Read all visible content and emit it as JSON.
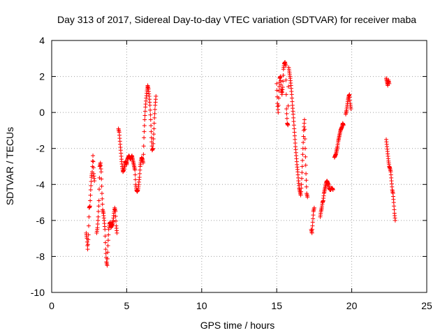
{
  "chart_data": {
    "type": "scatter",
    "title": "Day 313 of 2017, Sidereal Day-to-day VTEC variation (SDTVAR) for receiver maba",
    "xlabel": "GPS time / hours",
    "ylabel": "SDTVAR / TECUs",
    "xlim": [
      0,
      25
    ],
    "ylim": [
      -10,
      4
    ],
    "xticks": [
      0,
      5,
      10,
      15,
      20,
      25
    ],
    "yticks": [
      -10,
      -8,
      -6,
      -4,
      -2,
      0,
      2,
      4
    ],
    "grid": true,
    "marker": "+",
    "color": "#ff0000",
    "segments": [
      [
        [
          2.3,
          -6.7
        ],
        [
          2.35,
          -7.0
        ],
        [
          2.4,
          -7.6
        ],
        [
          2.45,
          -6.8
        ],
        [
          2.5,
          -5.3
        ],
        [
          2.55,
          -5.2
        ],
        [
          2.6,
          -4.3
        ],
        [
          2.65,
          -3.6
        ],
        [
          2.7,
          -3.3
        ],
        [
          2.75,
          -2.4
        ],
        [
          2.8,
          -3.4
        ],
        [
          2.85,
          -3.8
        ]
      ],
      [
        [
          3.0,
          -6.7
        ],
        [
          3.05,
          -6.4
        ],
        [
          3.1,
          -5.8
        ],
        [
          3.15,
          -4.9
        ],
        [
          3.2,
          -3.0
        ],
        [
          3.25,
          -2.8
        ],
        [
          3.3,
          -3.3
        ],
        [
          3.35,
          -4.5
        ],
        [
          3.4,
          -5.4
        ],
        [
          3.45,
          -5.6
        ],
        [
          3.5,
          -6.0
        ],
        [
          3.55,
          -6.5
        ],
        [
          3.6,
          -7.6
        ],
        [
          3.65,
          -8.3
        ],
        [
          3.7,
          -8.5
        ],
        [
          3.75,
          -7.4
        ],
        [
          3.8,
          -6.5
        ],
        [
          3.85,
          -6.2
        ],
        [
          3.9,
          -6.1
        ],
        [
          3.95,
          -6.4
        ],
        [
          4.0,
          -6.3
        ],
        [
          4.05,
          -6.2
        ],
        [
          4.1,
          -6.0
        ],
        [
          4.15,
          -5.6
        ],
        [
          4.2,
          -5.3
        ],
        [
          4.25,
          -5.5
        ],
        [
          4.3,
          -6.3
        ],
        [
          4.35,
          -6.7
        ]
      ],
      [
        [
          4.45,
          -0.9
        ],
        [
          4.5,
          -1.1
        ],
        [
          4.55,
          -1.6
        ],
        [
          4.6,
          -2.1
        ],
        [
          4.65,
          -2.6
        ],
        [
          4.7,
          -3.0
        ],
        [
          4.75,
          -3.3
        ],
        [
          4.8,
          -3.2
        ],
        [
          4.85,
          -3.0
        ],
        [
          4.9,
          -2.8
        ],
        [
          4.95,
          -2.7
        ],
        [
          5.0,
          -2.9
        ],
        [
          5.05,
          -2.6
        ],
        [
          5.1,
          -2.5
        ],
        [
          5.15,
          -2.4
        ],
        [
          5.2,
          -2.5
        ],
        [
          5.25,
          -2.6
        ],
        [
          5.3,
          -2.5
        ],
        [
          5.35,
          -2.4
        ],
        [
          5.4,
          -2.6
        ],
        [
          5.45,
          -2.8
        ],
        [
          5.5,
          -3.0
        ],
        [
          5.55,
          -3.2
        ],
        [
          5.6,
          -4.0
        ],
        [
          5.65,
          -4.3
        ],
        [
          5.7,
          -4.4
        ],
        [
          5.75,
          -4.3
        ],
        [
          5.8,
          -4.0
        ],
        [
          5.85,
          -3.6
        ],
        [
          5.9,
          -3.0
        ],
        [
          5.95,
          -2.7
        ],
        [
          6.0,
          -2.5
        ],
        [
          6.05,
          -2.6
        ],
        [
          6.1,
          -2.8
        ],
        [
          6.15,
          -1.4
        ],
        [
          6.2,
          -0.4
        ],
        [
          6.25,
          0.3
        ],
        [
          6.3,
          0.8
        ],
        [
          6.35,
          1.2
        ],
        [
          6.4,
          1.5
        ],
        [
          6.45,
          1.3
        ],
        [
          6.5,
          0.9
        ],
        [
          6.55,
          0.4
        ],
        [
          6.6,
          -0.4
        ],
        [
          6.65,
          -1.4
        ],
        [
          6.7,
          -2.1
        ],
        [
          6.75,
          -2.0
        ],
        [
          6.8,
          -1.2
        ],
        [
          6.85,
          -0.3
        ],
        [
          6.9,
          0.4
        ],
        [
          6.95,
          0.9
        ]
      ],
      [
        [
          15.0,
          1.6
        ],
        [
          15.05,
          0.5
        ],
        [
          15.1,
          0.0
        ],
        [
          15.15,
          1.2
        ],
        [
          15.2,
          1.9
        ],
        [
          15.25,
          2.0
        ],
        [
          15.3,
          1.3
        ],
        [
          15.35,
          1.0
        ],
        [
          15.4,
          1.4
        ],
        [
          15.45,
          2.4
        ],
        [
          15.5,
          2.7
        ],
        [
          15.55,
          2.8
        ],
        [
          15.6,
          2.6
        ],
        [
          15.65,
          0.2
        ],
        [
          15.7,
          -0.6
        ],
        [
          15.75,
          -0.7
        ],
        [
          15.8,
          2.5
        ],
        [
          15.85,
          2.2
        ],
        [
          15.9,
          1.9
        ],
        [
          15.95,
          1.5
        ],
        [
          16.0,
          1.0
        ],
        [
          16.05,
          0.4
        ],
        [
          16.1,
          -0.1
        ],
        [
          16.15,
          -0.7
        ],
        [
          16.2,
          -1.3
        ],
        [
          16.25,
          -1.9
        ],
        [
          16.3,
          -2.4
        ],
        [
          16.35,
          -2.9
        ],
        [
          16.4,
          -3.3
        ],
        [
          16.45,
          -3.8
        ],
        [
          16.5,
          -4.2
        ],
        [
          16.55,
          -4.4
        ],
        [
          16.6,
          -4.6
        ],
        [
          16.65,
          -4.0
        ],
        [
          16.7,
          -3.0
        ],
        [
          16.75,
          -2.0
        ],
        [
          16.8,
          -1.0
        ],
        [
          16.85,
          -0.4
        ],
        [
          16.9,
          -2.0
        ],
        [
          16.95,
          -3.4
        ],
        [
          17.0,
          -4.5
        ],
        [
          17.05,
          -4.7
        ]
      ],
      [
        [
          17.3,
          -6.5
        ],
        [
          17.35,
          -6.7
        ],
        [
          17.4,
          -6.1
        ],
        [
          17.45,
          -5.5
        ],
        [
          17.5,
          -5.3
        ]
      ],
      [
        [
          17.9,
          -5.8
        ],
        [
          17.95,
          -5.5
        ],
        [
          18.0,
          -5.3
        ],
        [
          18.05,
          -5.0
        ],
        [
          18.1,
          -4.9
        ],
        [
          18.15,
          -4.5
        ],
        [
          18.2,
          -4.3
        ],
        [
          18.25,
          -4.1
        ],
        [
          18.3,
          -3.9
        ],
        [
          18.35,
          -3.8
        ],
        [
          18.4,
          -3.9
        ],
        [
          18.45,
          -4.0
        ],
        [
          18.5,
          -4.2
        ],
        [
          18.55,
          -4.3
        ],
        [
          18.6,
          -4.3
        ],
        [
          18.65,
          -4.2
        ],
        [
          18.7,
          -4.2
        ],
        [
          18.75,
          -4.3
        ]
      ],
      [
        [
          18.85,
          -2.5
        ],
        [
          18.9,
          -2.4
        ],
        [
          18.95,
          -2.3
        ],
        [
          19.0,
          -2.1
        ],
        [
          19.05,
          -1.9
        ],
        [
          19.1,
          -1.6
        ],
        [
          19.15,
          -1.4
        ],
        [
          19.2,
          -1.2
        ],
        [
          19.25,
          -1.0
        ],
        [
          19.3,
          -0.9
        ],
        [
          19.35,
          -0.8
        ],
        [
          19.4,
          -0.6
        ],
        [
          19.45,
          -0.7
        ]
      ],
      [
        [
          19.6,
          -0.1
        ],
        [
          19.65,
          0.1
        ],
        [
          19.7,
          0.4
        ],
        [
          19.75,
          0.7
        ],
        [
          19.8,
          0.9
        ],
        [
          19.85,
          1.0
        ],
        [
          19.9,
          0.5
        ],
        [
          19.95,
          0.2
        ]
      ],
      [
        [
          22.3,
          -1.5
        ],
        [
          22.35,
          -1.9
        ],
        [
          22.4,
          -2.3
        ],
        [
          22.45,
          -2.7
        ],
        [
          22.5,
          -3.0
        ],
        [
          22.55,
          -3.1
        ],
        [
          22.6,
          -3.3
        ],
        [
          22.65,
          -3.8
        ],
        [
          22.7,
          -4.3
        ],
        [
          22.75,
          -4.5
        ],
        [
          22.8,
          -5.0
        ],
        [
          22.85,
          -5.6
        ],
        [
          22.9,
          -6.0
        ]
      ],
      [
        [
          22.3,
          1.9
        ],
        [
          22.35,
          1.7
        ],
        [
          22.4,
          1.5
        ],
        [
          22.45,
          1.8
        ],
        [
          22.5,
          1.6
        ]
      ]
    ]
  }
}
